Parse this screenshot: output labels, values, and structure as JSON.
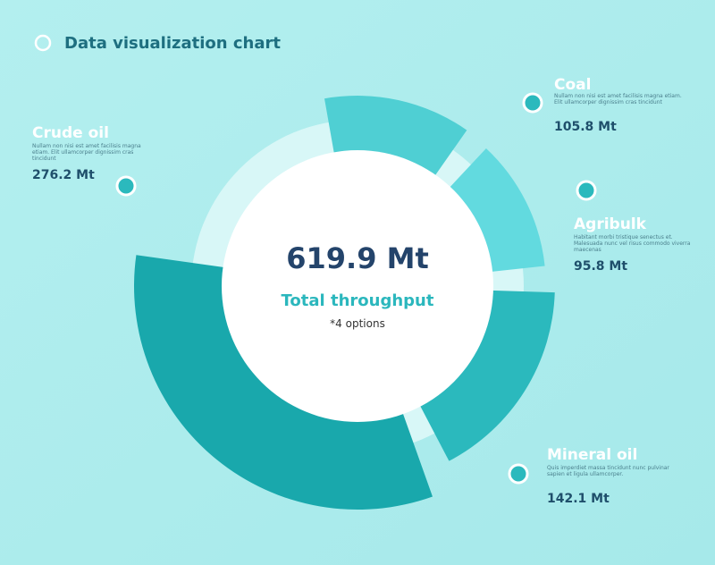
{
  "chart_data": {
    "type": "radial-bar",
    "title": "Data visualization chart",
    "total_label": "619.9 Mt",
    "subtitle": "Total  throughput",
    "note": "*4 options",
    "categories": [
      "Coal",
      "Agribulk",
      "Mineral oil",
      "Crude oil"
    ],
    "values": [
      105.8,
      95.8,
      142.1,
      276.2
    ],
    "value_labels": [
      "105.8 Mt",
      "95.8 Mt",
      "142.1 Mt",
      "276.2 Mt"
    ],
    "descriptions": [
      "Nullam non nisi est amet facilisis magna etiam. Elit ullamcorper dignissim cras tincidunt",
      "Habitant morbi tristique senectus et. Malesuada nunc vel risus commodo viverra maecenas",
      "Quis imperdiet massa tincidunt nunc pulvinar sapien et ligula ullamcorper.",
      "Nullam non nisi est amet facilisis magna etiam. Elit ullamcorper dignissim cras tincidunt"
    ],
    "colors": [
      "#4fcfd3",
      "#62dadf",
      "#2bb9bd",
      "#19a8ac"
    ]
  }
}
